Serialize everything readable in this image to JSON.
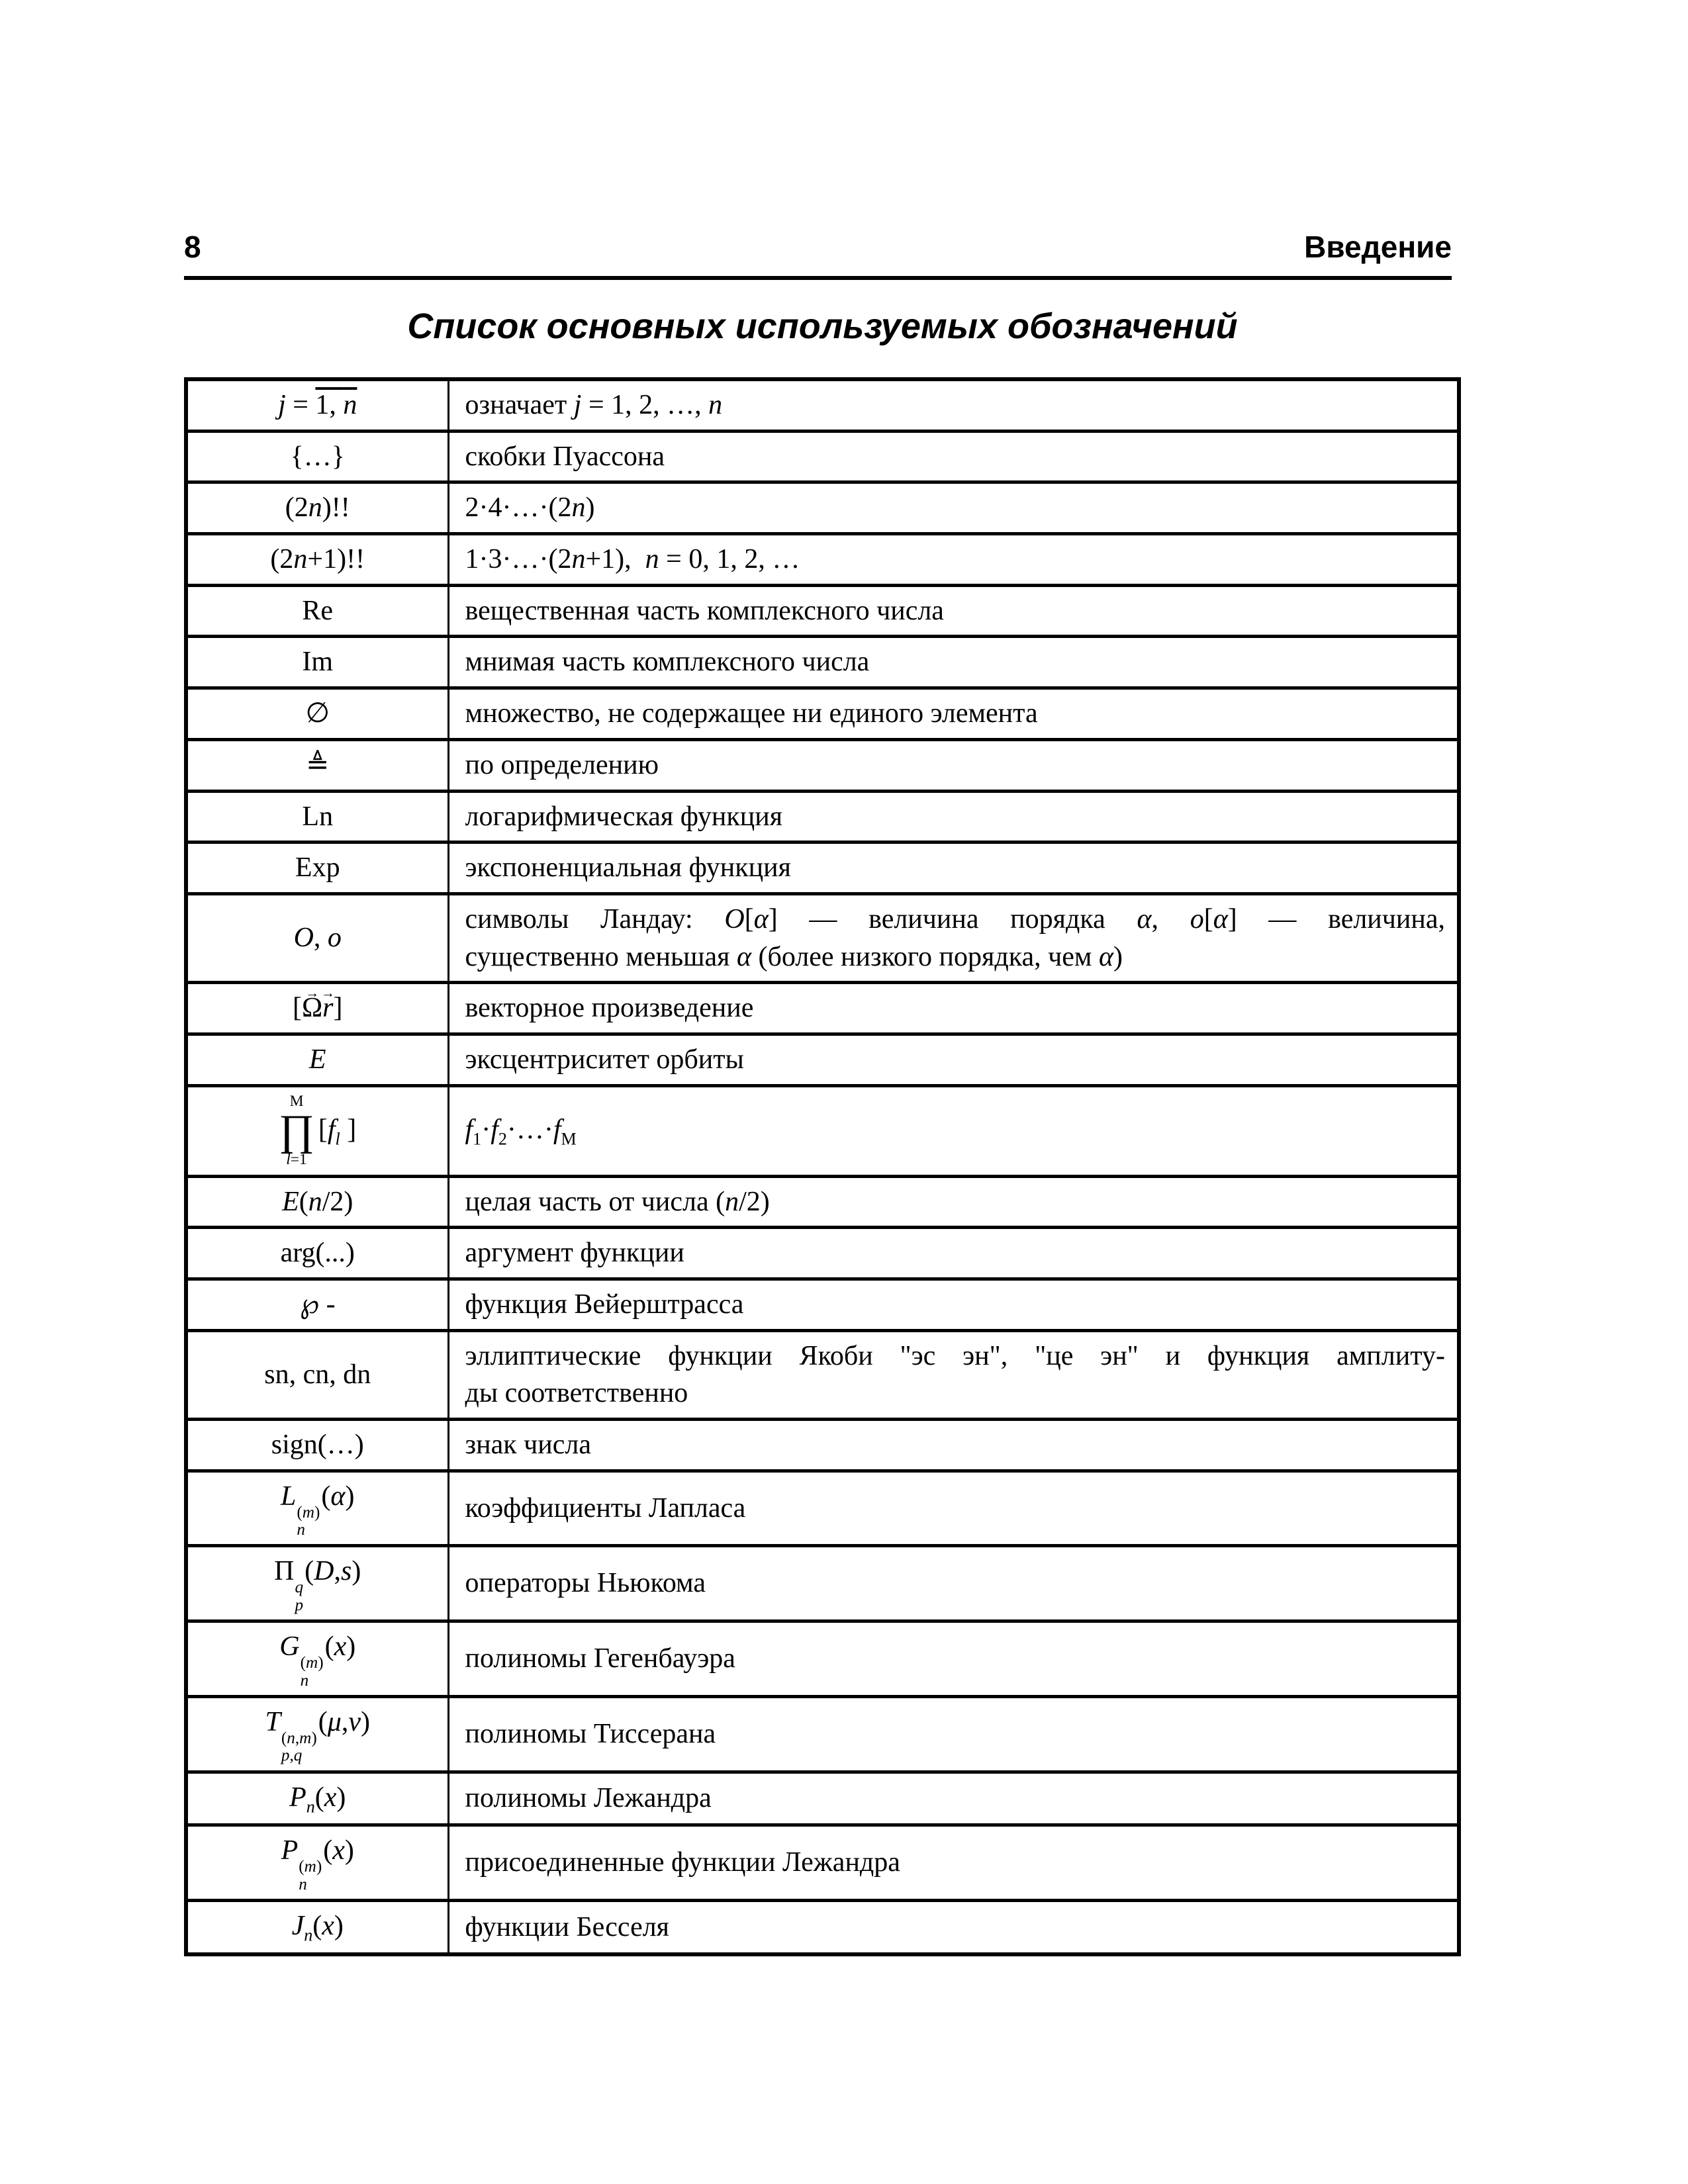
{
  "page": {
    "number": "8",
    "section": "Введение",
    "title": "Список основных используемых обозначений"
  },
  "table": {
    "rows": [
      {
        "symbol_html": "<i>j</i> = <span class='ol'>1, <i>n</i></span>",
        "description_html": "означает <i>j</i> = 1, 2, …, <i>n</i>"
      },
      {
        "symbol_html": "{…}",
        "description_html": "скобки Пуассона"
      },
      {
        "symbol_html": "(2<i>n</i>)!!",
        "description_html": "2·4·…·(2<i>n</i>)"
      },
      {
        "symbol_html": "(2<i>n</i>+1)!!",
        "description_html": "1·3·…·(2<i>n</i>+1),&nbsp; <i>n</i> = 0, 1, 2, …"
      },
      {
        "symbol_html": "Re",
        "description_html": "вещественная часть комплексного числа"
      },
      {
        "symbol_html": "Im",
        "description_html": "мнимая часть комплексного числа"
      },
      {
        "symbol_html": "∅",
        "description_html": "множество, не содержащее ни единого элемента"
      },
      {
        "symbol_html": "≜",
        "description_html": "по определению"
      },
      {
        "symbol_html": "Ln",
        "description_html": "логарифмическая функция"
      },
      {
        "symbol_html": "Exp",
        "description_html": "экспоненциальная функция"
      },
      {
        "symbol_html": "<i>O</i>, <i>o</i>",
        "description_html": "<span class='j1'>символы Ландау: <i>O</i>[<i>α</i>] — величина порядка <i>α</i>, <i>o</i>[<i>α</i>] — величина,</span><span class='jl'>существенно меньшая <i>α</i> (более низкого порядка, чем <i>α</i>)</span>"
      },
      {
        "symbol_html": "[<span class='vec'>Ω</span><span class='vec'><i>r</i></span>]",
        "description_html": "векторное произведение"
      },
      {
        "symbol_html": "<i>E</i>",
        "description_html": "эксцентриситет орбиты"
      },
      {
        "symbol_html": "<span class='prod'><span class='pl'>M</span><span class='pi'>∏</span><span class='pl'><i>l</i>=1</span></span><span class='parg'>[<i>f</i><sub><i>l</i></sub> ]</span>",
        "description_html": "<i>f</i><sub>1</sub>·<i>f</i><sub>2</sub>·…·<i>f</i><sub>M</sub>"
      },
      {
        "symbol_html": "<i>E</i>(<i>n</i>/2)",
        "description_html": "целая часть от числа (<i>n</i>/2)"
      },
      {
        "symbol_html": "arg(...)",
        "description_html": "аргумент функции"
      },
      {
        "symbol_html": "℘ -",
        "description_html": "функция Вейерштрасса"
      },
      {
        "symbol_html": "sn, cn, dn",
        "description_html": "<span class='j1'>эллиптические функции Якоби &quot;эс эн&quot;, &quot;це эн&quot; и функция амплиту-</span><span class='jl'>ды соответственно</span>"
      },
      {
        "symbol_html": "sign(…)",
        "description_html": "знак числа"
      },
      {
        "symbol_html": "<i>L</i><span class='ss'><span>(<i>m</i>)</span><span><i>n</i></span></span>(<i>α</i>)",
        "description_html": "коэффициенты Лапласа"
      },
      {
        "symbol_html": "Π<span class='ss'><span><i>q</i></span><span><i>p</i></span></span>(<i>D</i>,<i>s</i>)",
        "description_html": "операторы Ньюкома"
      },
      {
        "symbol_html": "<i>G</i><span class='ss'><span>(<i>m</i>)</span><span><i>n</i></span></span>(<i>x</i>)",
        "description_html": "полиномы Гегенбауэра"
      },
      {
        "symbol_html": "<i>T</i><span class='ss'><span>(<i>n</i>,<i>m</i>)</span><span><i>p</i>,<i>q</i></span></span>(<i>μ</i>,<i>ν</i>)",
        "description_html": "полиномы Тиссерана"
      },
      {
        "symbol_html": "<i>P</i><sub><i>n</i></sub>(<i>x</i>)",
        "description_html": "полиномы Лежандра"
      },
      {
        "symbol_html": "<i>P</i><span class='ss'><span>(<i>m</i>)</span><span><i>n</i></span></span>(<i>x</i>)",
        "description_html": "присоединенные функции Лежандра"
      },
      {
        "symbol_html": "<i>J</i><sub><i>n</i></sub>(<i>x</i>)",
        "description_html": "функции Бесселя"
      }
    ]
  }
}
